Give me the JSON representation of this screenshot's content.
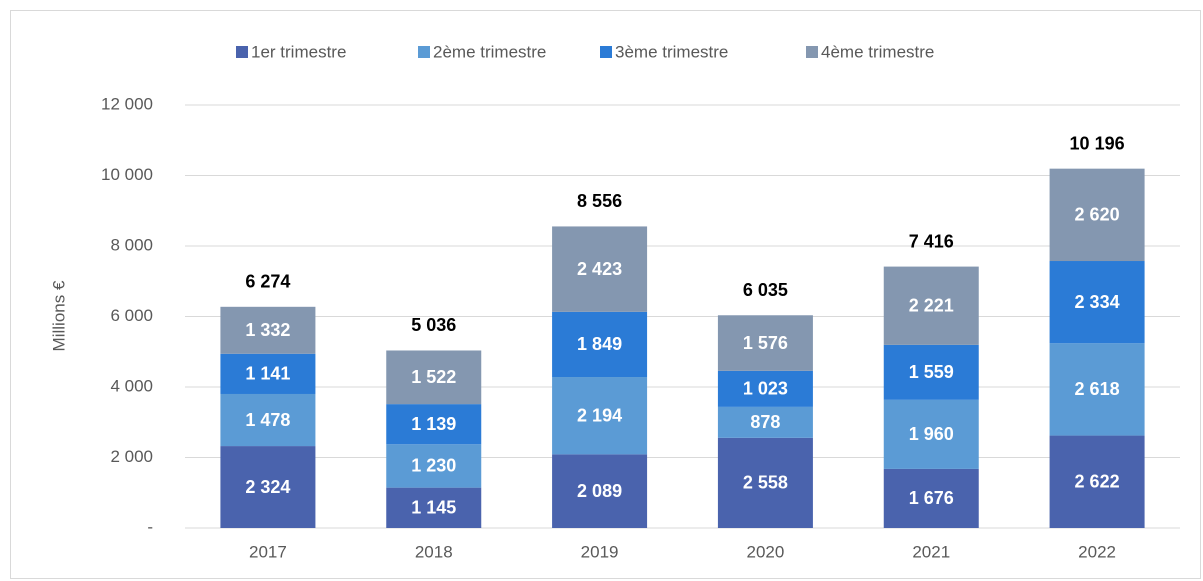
{
  "chart_data": {
    "type": "stacked_bar",
    "categories": [
      "2017",
      "2018",
      "2019",
      "2020",
      "2021",
      "2022"
    ],
    "series": [
      {
        "name": "1er trimestre",
        "color": "#4a63ad",
        "values": [
          2324,
          1145,
          2089,
          2558,
          1676,
          2622
        ],
        "value_labels": [
          "2 324",
          "1 145",
          "2 089",
          "2 558",
          "1 676",
          "2 622"
        ]
      },
      {
        "name": "2ème trimestre",
        "color": "#5b9bd5",
        "values": [
          1478,
          1230,
          2194,
          878,
          1960,
          2618
        ],
        "value_labels": [
          "1 478",
          "1 230",
          "2 194",
          "878",
          "1 960",
          "2 618"
        ]
      },
      {
        "name": "3ème trimestre",
        "color": "#2b7bd6",
        "values": [
          1141,
          1139,
          1849,
          1023,
          1559,
          2334
        ],
        "value_labels": [
          "1 141",
          "1 139",
          "1 849",
          "1 023",
          "1 559",
          "2 334"
        ]
      },
      {
        "name": "4ème trimestre",
        "color": "#8497b0",
        "values": [
          1332,
          1522,
          2423,
          1576,
          2221,
          2620
        ],
        "value_labels": [
          "1 332",
          "1 522",
          "2 423",
          "1 576",
          "2 221",
          "2 620"
        ]
      }
    ],
    "totals": [
      6274,
      5036,
      8556,
      6035,
      7416,
      10196
    ],
    "total_labels": [
      "6 274",
      "5 036",
      "8 556",
      "6 035",
      "7 416",
      "10 196"
    ],
    "y_label": "Millions €",
    "ylim": [
      0,
      12000
    ],
    "yticks": [
      {
        "value": 0,
        "label": "-"
      },
      {
        "value": 2000,
        "label": "2 000"
      },
      {
        "value": 4000,
        "label": "4 000"
      },
      {
        "value": 6000,
        "label": "6 000"
      },
      {
        "value": 8000,
        "label": "8 000"
      },
      {
        "value": 10000,
        "label": "10 000"
      },
      {
        "value": 12000,
        "label": "12 000"
      }
    ],
    "grid": true,
    "legend": "top"
  }
}
